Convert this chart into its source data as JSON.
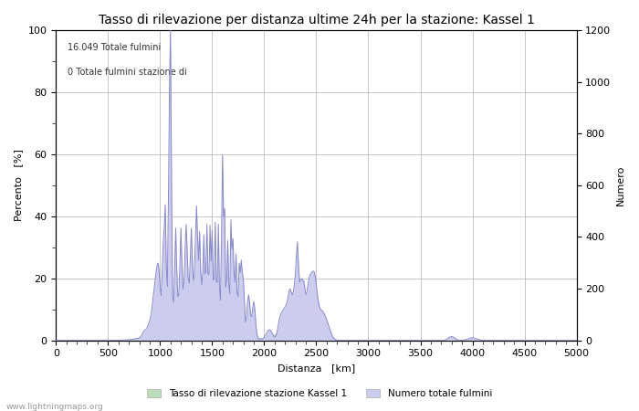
{
  "title": "Tasso di rilevazione per distanza ultime 24h per la stazione: Kassel 1",
  "xlabel": "Distanza   [km]",
  "ylabel_left": "Percento   [%]",
  "ylabel_right": "Numero",
  "annotation_line1": "16.049 Totale fulmini",
  "annotation_line2": "0 Totale fulmini stazione di",
  "xlim": [
    0,
    5000
  ],
  "ylim_left": [
    0,
    100
  ],
  "ylim_right": [
    0,
    1200
  ],
  "xticks": [
    0,
    500,
    1000,
    1500,
    2000,
    2500,
    3000,
    3500,
    4000,
    4500,
    5000
  ],
  "yticks_left": [
    0,
    20,
    40,
    60,
    80,
    100
  ],
  "yticks_right": [
    0,
    200,
    400,
    600,
    800,
    1000,
    1200
  ],
  "legend_label_green": "Tasso di rilevazione stazione Kassel 1",
  "legend_label_blue": "Numero totale fulmini",
  "watermark": "www.lightningmaps.org",
  "line_color": "#8888cc",
  "fill_blue_color": "#ccccee",
  "fill_green_color": "#bbddbb",
  "bg_color": "#ffffff",
  "grid_color": "#bbbbbb",
  "title_fontsize": 10,
  "axis_fontsize": 8,
  "tick_fontsize": 8
}
